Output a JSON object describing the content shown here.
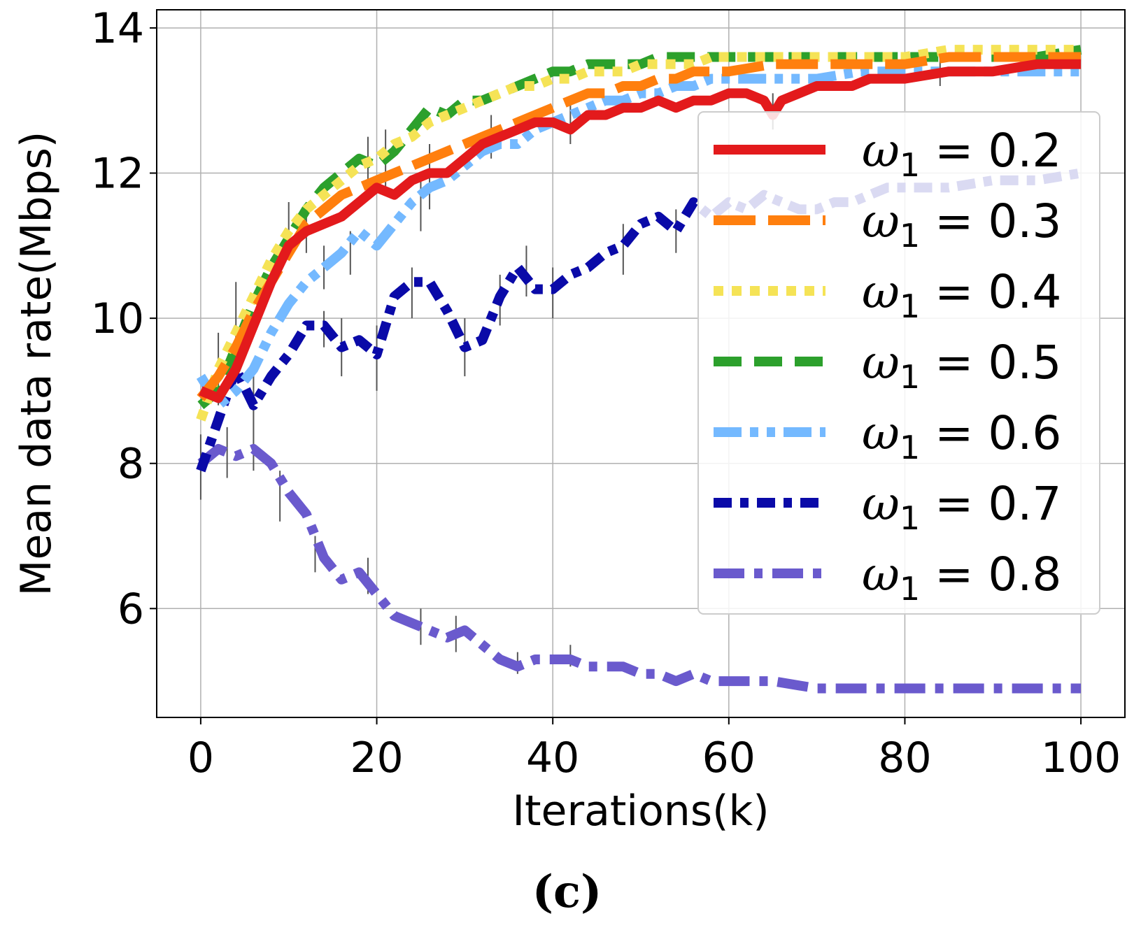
{
  "chart_data": {
    "type": "line",
    "title": "",
    "xlabel": "Iterations(k)",
    "ylabel": "Mean data rate(Mbps)",
    "xlim": [
      -5,
      105
    ],
    "ylim": [
      4.5,
      14.25
    ],
    "xticks": [
      0,
      20,
      40,
      60,
      80,
      100
    ],
    "yticks": [
      6,
      8,
      10,
      12,
      14
    ],
    "xtick_labels": [
      "0",
      "20",
      "40",
      "60",
      "80",
      "100"
    ],
    "ytick_labels": [
      "6",
      "8",
      "10",
      "12",
      "14"
    ],
    "grid": true,
    "legend_position": "upper right",
    "legend_prefix": "ω",
    "legend_subscript": "1",
    "series": [
      {
        "name": "0.2",
        "color": "#e31a1c",
        "dash": "solid",
        "x": [
          0,
          2,
          4,
          6,
          8,
          10,
          12,
          14,
          16,
          18,
          20,
          22,
          24,
          26,
          28,
          30,
          32,
          34,
          36,
          38,
          40,
          42,
          44,
          46,
          48,
          50,
          52,
          54,
          56,
          58,
          60,
          62,
          64,
          65,
          66,
          68,
          70,
          72,
          74,
          76,
          78,
          80,
          85,
          90,
          95,
          100
        ],
        "y": [
          9.0,
          8.9,
          9.3,
          9.9,
          10.5,
          11.0,
          11.2,
          11.3,
          11.4,
          11.6,
          11.8,
          11.7,
          11.9,
          12.0,
          12.0,
          12.2,
          12.4,
          12.5,
          12.6,
          12.7,
          12.7,
          12.6,
          12.8,
          12.8,
          12.9,
          12.9,
          13.0,
          12.9,
          13.0,
          13.0,
          13.1,
          13.1,
          13.0,
          12.8,
          13.0,
          13.1,
          13.2,
          13.2,
          13.2,
          13.3,
          13.3,
          13.3,
          13.4,
          13.4,
          13.5,
          13.5
        ]
      },
      {
        "name": "0.3",
        "color": "#ff7f0e",
        "dash": "long-dash",
        "x": [
          0,
          2,
          4,
          6,
          8,
          10,
          12,
          14,
          16,
          18,
          20,
          22,
          24,
          26,
          28,
          30,
          32,
          34,
          36,
          38,
          40,
          42,
          44,
          46,
          48,
          50,
          52,
          54,
          56,
          58,
          60,
          65,
          70,
          75,
          80,
          85,
          90,
          95,
          100
        ],
        "y": [
          8.9,
          9.2,
          9.6,
          10.1,
          10.5,
          10.9,
          11.3,
          11.5,
          11.7,
          11.8,
          11.9,
          12.0,
          12.1,
          12.2,
          12.3,
          12.4,
          12.5,
          12.6,
          12.7,
          12.8,
          12.9,
          13.0,
          13.1,
          13.1,
          13.2,
          13.2,
          13.3,
          13.3,
          13.4,
          13.4,
          13.4,
          13.5,
          13.5,
          13.5,
          13.5,
          13.6,
          13.6,
          13.6,
          13.6
        ]
      },
      {
        "name": "0.4",
        "color": "#f5e356",
        "dash": "dotted",
        "x": [
          0,
          2,
          4,
          6,
          8,
          10,
          12,
          14,
          16,
          18,
          20,
          22,
          24,
          26,
          28,
          30,
          32,
          34,
          36,
          38,
          40,
          42,
          44,
          46,
          48,
          50,
          52,
          54,
          56,
          58,
          60,
          65,
          70,
          75,
          80,
          85,
          90,
          95,
          100
        ],
        "y": [
          8.6,
          9.3,
          9.8,
          10.3,
          10.8,
          11.2,
          11.5,
          11.7,
          11.9,
          12.1,
          12.2,
          12.4,
          12.5,
          12.7,
          12.8,
          12.9,
          13.0,
          13.1,
          13.2,
          13.2,
          13.3,
          13.3,
          13.4,
          13.4,
          13.4,
          13.5,
          13.5,
          13.5,
          13.5,
          13.6,
          13.6,
          13.6,
          13.6,
          13.6,
          13.6,
          13.7,
          13.7,
          13.7,
          13.7
        ]
      },
      {
        "name": "0.5",
        "color": "#2ca02c",
        "dash": "dashed",
        "x": [
          0,
          2,
          4,
          6,
          8,
          10,
          12,
          14,
          16,
          18,
          20,
          22,
          24,
          26,
          28,
          30,
          32,
          34,
          36,
          38,
          40,
          42,
          44,
          46,
          48,
          50,
          52,
          54,
          56,
          58,
          60,
          65,
          70,
          75,
          80,
          85,
          90,
          95,
          100
        ],
        "y": [
          8.8,
          9.0,
          9.6,
          10.2,
          10.7,
          11.1,
          11.5,
          11.8,
          12.0,
          12.2,
          12.1,
          12.3,
          12.6,
          12.9,
          12.8,
          13.0,
          13.0,
          13.1,
          13.2,
          13.3,
          13.4,
          13.4,
          13.5,
          13.5,
          13.5,
          13.5,
          13.6,
          13.6,
          13.6,
          13.6,
          13.6,
          13.6,
          13.6,
          13.6,
          13.6,
          13.6,
          13.6,
          13.6,
          13.7
        ]
      },
      {
        "name": "0.6",
        "color": "#74b9ff",
        "dash": "dash-dot-dot",
        "x": [
          0,
          2,
          4,
          6,
          8,
          10,
          12,
          14,
          16,
          18,
          20,
          22,
          24,
          26,
          28,
          30,
          32,
          34,
          36,
          38,
          40,
          42,
          44,
          46,
          48,
          50,
          52,
          54,
          56,
          58,
          60,
          65,
          70,
          75,
          80,
          85,
          90,
          95,
          100
        ],
        "y": [
          9.2,
          8.8,
          9.0,
          9.3,
          9.8,
          10.2,
          10.5,
          10.7,
          10.9,
          11.2,
          11.0,
          11.3,
          11.6,
          11.8,
          11.9,
          12.1,
          12.3,
          12.4,
          12.4,
          12.6,
          12.7,
          12.8,
          12.9,
          13.0,
          13.0,
          13.1,
          13.1,
          13.2,
          13.2,
          13.3,
          13.3,
          13.3,
          13.3,
          13.4,
          13.4,
          13.4,
          13.4,
          13.4,
          13.4
        ]
      },
      {
        "name": "0.7",
        "color": "#0a0aa8",
        "dash": "dash-dot",
        "x": [
          0,
          2,
          4,
          6,
          8,
          10,
          12,
          14,
          16,
          18,
          20,
          22,
          24,
          26,
          28,
          30,
          32,
          34,
          36,
          38,
          40,
          42,
          44,
          46,
          48,
          50,
          52,
          54,
          56,
          58,
          60,
          62,
          64,
          66,
          68,
          70,
          72,
          74,
          76,
          78,
          80,
          85,
          90,
          95,
          100
        ],
        "y": [
          7.9,
          8.6,
          9.3,
          8.8,
          9.2,
          9.5,
          9.9,
          9.9,
          9.6,
          9.7,
          9.5,
          10.3,
          10.5,
          10.5,
          10.1,
          9.6,
          9.7,
          10.3,
          10.7,
          10.4,
          10.4,
          10.6,
          10.7,
          10.9,
          11.0,
          11.3,
          11.4,
          11.2,
          11.6,
          11.4,
          11.6,
          11.5,
          11.7,
          11.6,
          11.5,
          11.5,
          11.6,
          11.6,
          11.7,
          11.8,
          11.8,
          11.8,
          11.9,
          11.9,
          12.0
        ]
      },
      {
        "name": "0.8",
        "color": "#6a5acd",
        "dash": "dash-dot-wide",
        "x": [
          0,
          2,
          4,
          6,
          8,
          10,
          12,
          14,
          16,
          18,
          20,
          22,
          24,
          26,
          28,
          30,
          32,
          34,
          36,
          38,
          40,
          42,
          44,
          46,
          48,
          50,
          52,
          54,
          56,
          58,
          60,
          65,
          70,
          75,
          80,
          85,
          90,
          95,
          100
        ],
        "y": [
          8.0,
          8.2,
          8.1,
          8.2,
          8.0,
          7.6,
          7.3,
          6.7,
          6.4,
          6.5,
          6.2,
          5.9,
          5.8,
          5.7,
          5.6,
          5.7,
          5.5,
          5.3,
          5.2,
          5.3,
          5.3,
          5.3,
          5.2,
          5.2,
          5.2,
          5.1,
          5.1,
          5.0,
          5.1,
          5.0,
          5.0,
          5.0,
          4.9,
          4.9,
          4.9,
          4.9,
          4.9,
          4.9,
          4.9
        ]
      }
    ],
    "error_bars": [
      {
        "x": 0,
        "lo": 7.5,
        "hi": 8.4
      },
      {
        "x": 3,
        "lo": 7.8,
        "hi": 8.5
      },
      {
        "x": 6,
        "lo": 7.9,
        "hi": 8.6
      },
      {
        "x": 9,
        "lo": 7.2,
        "hi": 7.9
      },
      {
        "x": 13,
        "lo": 6.5,
        "hi": 7.0
      },
      {
        "x": 19,
        "lo": 6.2,
        "hi": 6.7
      },
      {
        "x": 25,
        "lo": 5.5,
        "hi": 6.0
      },
      {
        "x": 29,
        "lo": 5.4,
        "hi": 5.9
      },
      {
        "x": 36,
        "lo": 5.1,
        "hi": 5.4
      },
      {
        "x": 42,
        "lo": 5.2,
        "hi": 5.5
      },
      {
        "x": 2,
        "lo": 8.8,
        "hi": 9.8
      },
      {
        "x": 4,
        "lo": 9.5,
        "hi": 10.5
      },
      {
        "x": 6,
        "lo": 8.6,
        "hi": 9.3
      },
      {
        "x": 10,
        "lo": 10.8,
        "hi": 11.6
      },
      {
        "x": 14,
        "lo": 9.6,
        "hi": 10.1
      },
      {
        "x": 16,
        "lo": 9.2,
        "hi": 10.0
      },
      {
        "x": 20,
        "lo": 9.0,
        "hi": 9.9
      },
      {
        "x": 24,
        "lo": 10.0,
        "hi": 10.7
      },
      {
        "x": 30,
        "lo": 9.2,
        "hi": 10.0
      },
      {
        "x": 34,
        "lo": 9.9,
        "hi": 10.6
      },
      {
        "x": 37,
        "lo": 10.3,
        "hi": 11.0
      },
      {
        "x": 40,
        "lo": 10.0,
        "hi": 10.7
      },
      {
        "x": 48,
        "lo": 10.6,
        "hi": 11.3
      },
      {
        "x": 54,
        "lo": 10.9,
        "hi": 11.5
      },
      {
        "x": 19,
        "lo": 11.7,
        "hi": 12.5
      },
      {
        "x": 21,
        "lo": 11.8,
        "hi": 12.6
      },
      {
        "x": 26,
        "lo": 11.5,
        "hi": 12.4
      },
      {
        "x": 33,
        "lo": 12.2,
        "hi": 12.8
      },
      {
        "x": 42,
        "lo": 12.4,
        "hi": 13.0
      },
      {
        "x": 65,
        "lo": 12.6,
        "hi": 13.1
      },
      {
        "x": 84,
        "lo": 13.2,
        "hi": 13.6
      },
      {
        "x": 12,
        "lo": 10.9,
        "hi": 11.6
      },
      {
        "x": 14,
        "lo": 10.4,
        "hi": 11.0
      },
      {
        "x": 17,
        "lo": 10.6,
        "hi": 11.2
      },
      {
        "x": 25,
        "lo": 11.2,
        "hi": 11.9
      }
    ]
  },
  "caption": "(c)"
}
